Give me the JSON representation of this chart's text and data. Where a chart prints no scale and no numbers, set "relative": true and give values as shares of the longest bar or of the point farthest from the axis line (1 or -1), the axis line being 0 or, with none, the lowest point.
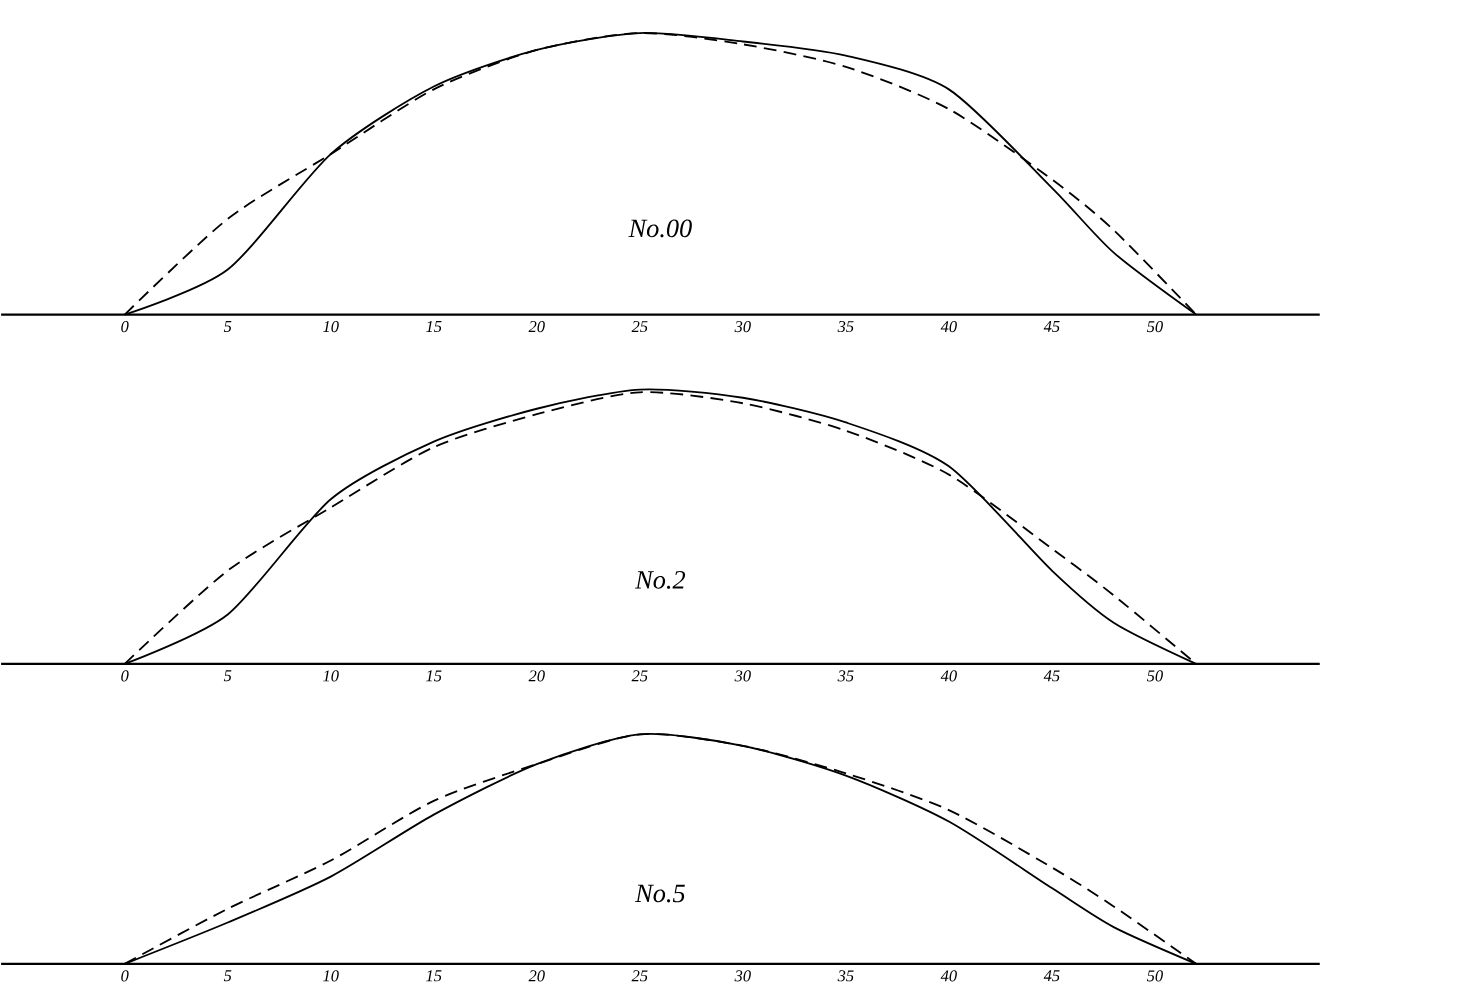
{
  "chart_data": [
    {
      "type": "line",
      "relative": true,
      "annotations": [
        "No.00"
      ],
      "x": [
        0,
        5,
        10,
        15,
        20,
        25,
        30,
        35,
        40,
        45,
        48,
        52
      ],
      "xlim": [
        -6,
        58
      ],
      "xticks": [
        0,
        5,
        10,
        15,
        20,
        25,
        30,
        35,
        40,
        45,
        50
      ],
      "series": [
        {
          "color": "#000000",
          "line_style": "solid",
          "values": [
            0,
            0.16,
            0.57,
            0.81,
            0.94,
            1.0,
            0.97,
            0.92,
            0.8,
            0.45,
            0.22,
            0
          ]
        },
        {
          "color": "#000000",
          "line_style": "dashed",
          "values": [
            0,
            0.34,
            0.57,
            0.8,
            0.94,
            1.0,
            0.96,
            0.88,
            0.73,
            0.48,
            0.3,
            0
          ]
        }
      ]
    },
    {
      "type": "line",
      "relative": true,
      "annotations": [
        "No.2"
      ],
      "x": [
        0,
        5,
        10,
        15,
        20,
        25,
        30,
        35,
        40,
        45,
        48,
        52
      ],
      "xlim": [
        -6,
        58
      ],
      "xticks": [
        0,
        5,
        10,
        15,
        20,
        25,
        30,
        35,
        40,
        45,
        50
      ],
      "series": [
        {
          "color": "#000000",
          "line_style": "solid",
          "values": [
            0,
            0.18,
            0.6,
            0.81,
            0.93,
            1.0,
            0.97,
            0.88,
            0.72,
            0.34,
            0.15,
            0
          ]
        },
        {
          "color": "#000000",
          "line_style": "dashed",
          "values": [
            0,
            0.34,
            0.57,
            0.79,
            0.91,
            0.99,
            0.95,
            0.85,
            0.69,
            0.42,
            0.25,
            0
          ]
        }
      ]
    },
    {
      "type": "line",
      "relative": true,
      "annotations": [
        "No.5"
      ],
      "x": [
        0,
        5,
        10,
        15,
        20,
        25,
        30,
        35,
        40,
        45,
        48,
        52
      ],
      "xlim": [
        -6,
        58
      ],
      "xticks": [
        0,
        5,
        10,
        15,
        20,
        25,
        30,
        35,
        40,
        45,
        50
      ],
      "series": [
        {
          "color": "#000000",
          "line_style": "solid",
          "values": [
            0,
            0.18,
            0.38,
            0.65,
            0.87,
            1.0,
            0.95,
            0.82,
            0.62,
            0.33,
            0.16,
            0
          ]
        },
        {
          "color": "#000000",
          "line_style": "dashed",
          "values": [
            0,
            0.24,
            0.45,
            0.71,
            0.87,
            1.0,
            0.95,
            0.83,
            0.67,
            0.42,
            0.25,
            0
          ]
        }
      ]
    }
  ]
}
